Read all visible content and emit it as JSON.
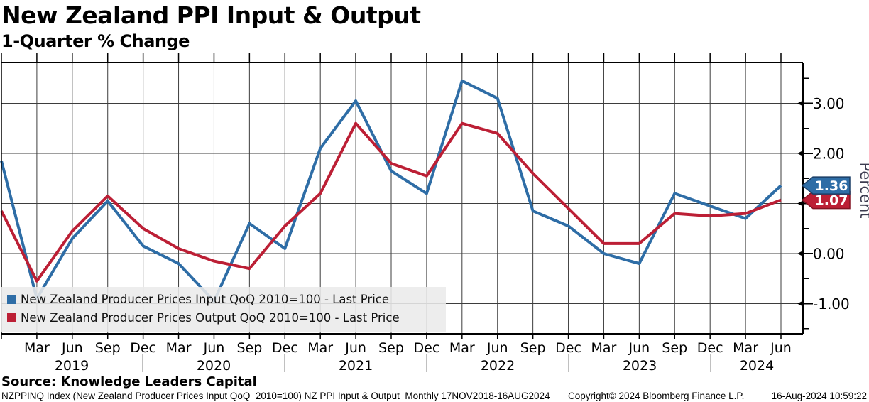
{
  "header": {
    "title": "New Zealand PPI Input & Output",
    "subtitle": "1-Quarter % Change"
  },
  "source_line": "Source: Knowledge Leaders Capital",
  "footer": {
    "left": "NZPPINQ Index (New Zealand Producer Prices Input QoQ  2010=100) NZ PPI Input & Output  Monthly 17NOV2018-16AUG2024",
    "copyright": "Copyright© 2024 Bloomberg Finance L.P.",
    "timestamp": "16-Aug-2024 10:59:22"
  },
  "chart_data": {
    "type": "line",
    "title": "New Zealand PPI Input & Output",
    "subtitle": "1-Quarter % Change",
    "xlabel": "",
    "ylabel": "Percent",
    "ylim": [
      -1.6,
      3.81
    ],
    "grid": true,
    "legend_position": "bottom-left",
    "x": [
      "2018 Q4",
      "2019 Q1",
      "2019 Q2",
      "2019 Q3",
      "2019 Q4",
      "2020 Q1",
      "2020 Q2",
      "2020 Q3",
      "2020 Q4",
      "2021 Q1",
      "2021 Q2",
      "2021 Q3",
      "2021 Q4",
      "2022 Q1",
      "2022 Q2",
      "2022 Q3",
      "2022 Q4",
      "2023 Q1",
      "2023 Q2",
      "2023 Q3",
      "2023 Q4",
      "2024 Q1",
      "2024 Q2"
    ],
    "series": [
      {
        "name": "New Zealand Producer Prices Input QoQ 2010=100 - Last Price",
        "color": "#2e6da6",
        "tag_border": "#1b3f66",
        "last_price": 1.36,
        "last_price_label": "1.36",
        "values": [
          1.85,
          -0.9,
          0.3,
          1.05,
          0.15,
          -0.2,
          -0.95,
          0.6,
          0.1,
          2.1,
          3.05,
          1.65,
          1.2,
          3.45,
          3.1,
          0.85,
          0.55,
          0.0,
          -0.2,
          1.2,
          0.95,
          0.7,
          1.36
        ]
      },
      {
        "name": "New Zealand Producer Prices Output QoQ 2010=100 - Last Price",
        "color": "#bc1f35",
        "tag_border": "#841323",
        "last_price": 1.07,
        "last_price_label": "1.07",
        "values": [
          0.85,
          -0.55,
          0.45,
          1.15,
          0.5,
          0.1,
          -0.15,
          -0.3,
          0.55,
          1.2,
          2.6,
          1.8,
          1.55,
          2.6,
          2.4,
          1.6,
          0.9,
          0.2,
          0.2,
          0.8,
          0.75,
          0.8,
          1.07
        ]
      }
    ],
    "y_axis": {
      "labeled_ticks": [
        {
          "value": 3,
          "label": "3.00"
        },
        {
          "value": 2,
          "label": "2.00"
        },
        {
          "value": 0,
          "label": "0.00"
        },
        {
          "value": -1,
          "label": "-1.00"
        }
      ],
      "grid_values": [
        3,
        2,
        1,
        0,
        -1
      ],
      "minor_ticks": [
        3.5,
        2.5,
        1.5,
        0.5,
        -0.5,
        -1.5
      ]
    },
    "x_axis": {
      "months": [
        "Mar",
        "Jun",
        "Sep",
        "Dec",
        "Mar",
        "Jun",
        "Sep",
        "Dec",
        "Mar",
        "Jun",
        "Sep",
        "Dec",
        "Mar",
        "Jun",
        "Sep",
        "Dec",
        "Mar",
        "Jun",
        "Sep",
        "Dec",
        "Mar",
        "Jun"
      ],
      "years": [
        "2019",
        "2020",
        "2021",
        "2022",
        "2023",
        "2024"
      ]
    }
  }
}
